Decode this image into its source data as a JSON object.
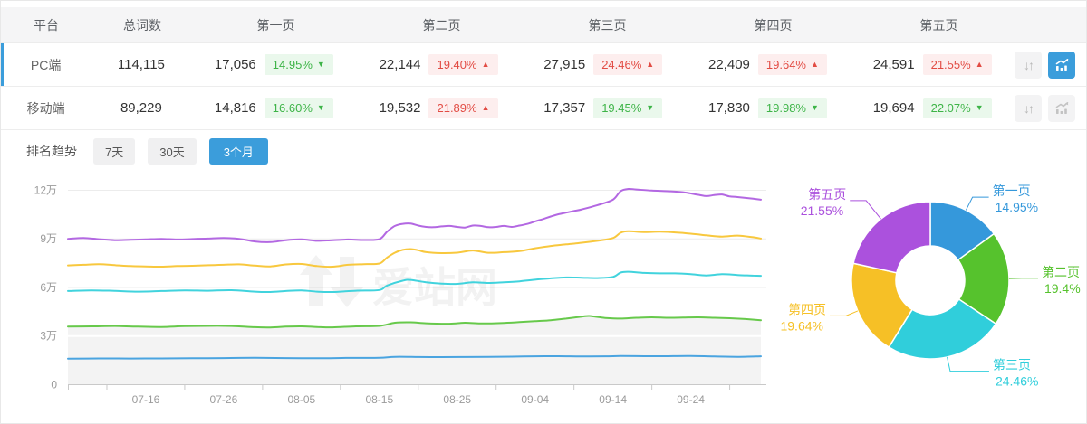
{
  "table": {
    "headers": {
      "platform": "平台",
      "total": "总词数",
      "page1": "第一页",
      "page2": "第二页",
      "page3": "第三页",
      "page4": "第四页",
      "page5": "第五页"
    },
    "icons": {
      "sort_glyph": "↓↑"
    },
    "rows": [
      {
        "platform": "PC端",
        "total": "114,115",
        "selected": true,
        "pages": [
          {
            "count": "17,056",
            "pct": "14.95%",
            "dir": "down",
            "tri": "▼"
          },
          {
            "count": "22,144",
            "pct": "19.40%",
            "dir": "up",
            "tri": "▲"
          },
          {
            "count": "27,915",
            "pct": "24.46%",
            "dir": "up",
            "tri": "▲"
          },
          {
            "count": "22,409",
            "pct": "19.64%",
            "dir": "up",
            "tri": "▲"
          },
          {
            "count": "24,591",
            "pct": "21.55%",
            "dir": "up",
            "tri": "▲"
          }
        ]
      },
      {
        "platform": "移动端",
        "total": "89,229",
        "selected": false,
        "pages": [
          {
            "count": "14,816",
            "pct": "16.60%",
            "dir": "down",
            "tri": "▼"
          },
          {
            "count": "19,532",
            "pct": "21.89%",
            "dir": "up",
            "tri": "▲"
          },
          {
            "count": "17,357",
            "pct": "19.45%",
            "dir": "down",
            "tri": "▼"
          },
          {
            "count": "17,830",
            "pct": "19.98%",
            "dir": "down",
            "tri": "▼"
          },
          {
            "count": "19,694",
            "pct": "22.07%",
            "dir": "down",
            "tri": "▼"
          }
        ]
      }
    ]
  },
  "trend": {
    "label": "排名趋势",
    "tabs": [
      {
        "label": "7天",
        "active": false
      },
      {
        "label": "30天",
        "active": false
      },
      {
        "label": "3个月",
        "active": true
      }
    ]
  },
  "watermark": {
    "text": "爱站网"
  },
  "colors": {
    "accent_blue": "#3b9ddb",
    "badge_green": "#3db447",
    "badge_red": "#e24b43",
    "grid": "#ececec",
    "axis_label": "#9b9b9b"
  },
  "chart_data": [
    {
      "type": "line",
      "note": "stacked cumulative keyword counts over 3 months, unit 万 (10k)",
      "x_ticks": [
        {
          "day": 10,
          "label": "07-16"
        },
        {
          "day": 20,
          "label": "07-26"
        },
        {
          "day": 30,
          "label": "08-05"
        },
        {
          "day": 40,
          "label": "08-15"
        },
        {
          "day": 50,
          "label": "08-25"
        },
        {
          "day": 60,
          "label": "09-04"
        },
        {
          "day": 70,
          "label": "09-14"
        },
        {
          "day": 80,
          "label": "09-24"
        }
      ],
      "x_range_days": [
        0,
        89
      ],
      "y_ticks": [
        {
          "value_wan": 0,
          "label": "0"
        },
        {
          "value_wan": 3,
          "label": "3万"
        },
        {
          "value_wan": 6,
          "label": "6万"
        },
        {
          "value_wan": 9,
          "label": "9万"
        },
        {
          "value_wan": 12,
          "label": "12万"
        }
      ],
      "ylim_wan": [
        0,
        13
      ],
      "series": [
        {
          "name": "第一页",
          "color": "#4aa4e0",
          "points": [
            [
              0,
              1.6
            ],
            [
              4,
              1.62
            ],
            [
              8,
              1.61
            ],
            [
              12,
              1.62
            ],
            [
              16,
              1.63
            ],
            [
              20,
              1.64
            ],
            [
              24,
              1.66
            ],
            [
              28,
              1.64
            ],
            [
              32,
              1.63
            ],
            [
              36,
              1.65
            ],
            [
              40,
              1.66
            ],
            [
              42,
              1.72
            ],
            [
              45,
              1.71
            ],
            [
              48,
              1.7
            ],
            [
              51,
              1.71
            ],
            [
              54,
              1.72
            ],
            [
              57,
              1.73
            ],
            [
              60,
              1.75
            ],
            [
              63,
              1.76
            ],
            [
              66,
              1.74
            ],
            [
              69,
              1.75
            ],
            [
              71,
              1.77
            ],
            [
              74,
              1.76
            ],
            [
              77,
              1.76
            ],
            [
              80,
              1.77
            ],
            [
              83,
              1.74
            ],
            [
              86,
              1.72
            ],
            [
              89,
              1.75
            ]
          ]
        },
        {
          "name": "第二页",
          "color": "#67c94b",
          "area_fill": "#f3f3f3",
          "points": [
            [
              0,
              3.58
            ],
            [
              3,
              3.6
            ],
            [
              6,
              3.62
            ],
            [
              9,
              3.58
            ],
            [
              12,
              3.56
            ],
            [
              15,
              3.61
            ],
            [
              18,
              3.63
            ],
            [
              21,
              3.62
            ],
            [
              24,
              3.55
            ],
            [
              26,
              3.53
            ],
            [
              28,
              3.58
            ],
            [
              30,
              3.6
            ],
            [
              32,
              3.56
            ],
            [
              34,
              3.54
            ],
            [
              37,
              3.6
            ],
            [
              40,
              3.63
            ],
            [
              42,
              3.82
            ],
            [
              44,
              3.85
            ],
            [
              46,
              3.79
            ],
            [
              49,
              3.76
            ],
            [
              51,
              3.82
            ],
            [
              53,
              3.78
            ],
            [
              56,
              3.81
            ],
            [
              58,
              3.86
            ],
            [
              60,
              3.92
            ],
            [
              62,
              3.98
            ],
            [
              64,
              4.08
            ],
            [
              66,
              4.2
            ],
            [
              67,
              4.24
            ],
            [
              69,
              4.12
            ],
            [
              71,
              4.08
            ],
            [
              73,
              4.13
            ],
            [
              75,
              4.16
            ],
            [
              77,
              4.13
            ],
            [
              79,
              4.14
            ],
            [
              81,
              4.16
            ],
            [
              83,
              4.13
            ],
            [
              85,
              4.1
            ],
            [
              87,
              4.05
            ],
            [
              89,
              3.98
            ]
          ]
        },
        {
          "name": "第三页",
          "color": "#41d3dd",
          "points": [
            [
              0,
              5.78
            ],
            [
              3,
              5.82
            ],
            [
              6,
              5.79
            ],
            [
              9,
              5.74
            ],
            [
              12,
              5.78
            ],
            [
              15,
              5.82
            ],
            [
              18,
              5.8
            ],
            [
              21,
              5.83
            ],
            [
              24,
              5.74
            ],
            [
              26,
              5.72
            ],
            [
              28,
              5.78
            ],
            [
              30,
              5.82
            ],
            [
              32,
              5.74
            ],
            [
              34,
              5.72
            ],
            [
              37,
              5.8
            ],
            [
              40,
              5.84
            ],
            [
              41,
              6.12
            ],
            [
              43,
              6.42
            ],
            [
              44,
              6.47
            ],
            [
              46,
              6.32
            ],
            [
              48,
              6.24
            ],
            [
              50,
              6.22
            ],
            [
              52,
              6.32
            ],
            [
              54,
              6.28
            ],
            [
              56,
              6.32
            ],
            [
              58,
              6.38
            ],
            [
              60,
              6.48
            ],
            [
              62,
              6.56
            ],
            [
              64,
              6.62
            ],
            [
              66,
              6.6
            ],
            [
              68,
              6.58
            ],
            [
              70,
              6.65
            ],
            [
              71,
              6.92
            ],
            [
              72,
              6.97
            ],
            [
              74,
              6.9
            ],
            [
              76,
              6.87
            ],
            [
              78,
              6.87
            ],
            [
              80,
              6.82
            ],
            [
              82,
              6.74
            ],
            [
              84,
              6.82
            ],
            [
              86,
              6.77
            ],
            [
              88,
              6.73
            ],
            [
              89,
              6.72
            ]
          ]
        },
        {
          "name": "第四页",
          "color": "#f8c83e",
          "points": [
            [
              0,
              7.36
            ],
            [
              2,
              7.4
            ],
            [
              4,
              7.44
            ],
            [
              6,
              7.38
            ],
            [
              8,
              7.32
            ],
            [
              10,
              7.3
            ],
            [
              12,
              7.28
            ],
            [
              14,
              7.32
            ],
            [
              16,
              7.34
            ],
            [
              18,
              7.37
            ],
            [
              20,
              7.4
            ],
            [
              22,
              7.43
            ],
            [
              24,
              7.35
            ],
            [
              26,
              7.3
            ],
            [
              28,
              7.42
            ],
            [
              30,
              7.45
            ],
            [
              32,
              7.32
            ],
            [
              34,
              7.28
            ],
            [
              36,
              7.4
            ],
            [
              38,
              7.44
            ],
            [
              40,
              7.48
            ],
            [
              41,
              7.85
            ],
            [
              42,
              8.15
            ],
            [
              43,
              8.32
            ],
            [
              44,
              8.37
            ],
            [
              45,
              8.3
            ],
            [
              46,
              8.18
            ],
            [
              48,
              8.12
            ],
            [
              50,
              8.15
            ],
            [
              52,
              8.28
            ],
            [
              54,
              8.14
            ],
            [
              56,
              8.18
            ],
            [
              58,
              8.24
            ],
            [
              60,
              8.42
            ],
            [
              62,
              8.56
            ],
            [
              64,
              8.66
            ],
            [
              66,
              8.76
            ],
            [
              68,
              8.88
            ],
            [
              70,
              9.05
            ],
            [
              71,
              9.38
            ],
            [
              72,
              9.47
            ],
            [
              74,
              9.42
            ],
            [
              76,
              9.44
            ],
            [
              78,
              9.4
            ],
            [
              80,
              9.32
            ],
            [
              82,
              9.22
            ],
            [
              84,
              9.14
            ],
            [
              86,
              9.2
            ],
            [
              88,
              9.1
            ],
            [
              89,
              9.02
            ]
          ]
        },
        {
          "name": "第五页",
          "color": "#b368e2",
          "points": [
            [
              0,
              9.0
            ],
            [
              2,
              9.05
            ],
            [
              4,
              8.98
            ],
            [
              6,
              8.92
            ],
            [
              8,
              8.94
            ],
            [
              10,
              8.97
            ],
            [
              12,
              9.0
            ],
            [
              14,
              8.96
            ],
            [
              16,
              8.99
            ],
            [
              18,
              9.02
            ],
            [
              20,
              9.05
            ],
            [
              22,
              9.0
            ],
            [
              24,
              8.84
            ],
            [
              26,
              8.8
            ],
            [
              28,
              8.92
            ],
            [
              30,
              8.97
            ],
            [
              32,
              8.88
            ],
            [
              34,
              8.92
            ],
            [
              36,
              8.96
            ],
            [
              38,
              8.93
            ],
            [
              40,
              8.98
            ],
            [
              41,
              9.45
            ],
            [
              42,
              9.8
            ],
            [
              43,
              9.93
            ],
            [
              44,
              9.95
            ],
            [
              45,
              9.82
            ],
            [
              46,
              9.74
            ],
            [
              47,
              9.72
            ],
            [
              48,
              9.77
            ],
            [
              49,
              9.8
            ],
            [
              50,
              9.74
            ],
            [
              51,
              9.7
            ],
            [
              52,
              9.82
            ],
            [
              53,
              9.8
            ],
            [
              54,
              9.72
            ],
            [
              55,
              9.74
            ],
            [
              56,
              9.8
            ],
            [
              57,
              9.74
            ],
            [
              58,
              9.82
            ],
            [
              59,
              9.92
            ],
            [
              60,
              10.08
            ],
            [
              61,
              10.22
            ],
            [
              62,
              10.38
            ],
            [
              63,
              10.52
            ],
            [
              64,
              10.62
            ],
            [
              65,
              10.72
            ],
            [
              66,
              10.82
            ],
            [
              68,
              11.08
            ],
            [
              70,
              11.42
            ],
            [
              71,
              11.95
            ],
            [
              72,
              12.08
            ],
            [
              73,
              12.05
            ],
            [
              75,
              11.98
            ],
            [
              77,
              11.94
            ],
            [
              79,
              11.88
            ],
            [
              81,
              11.72
            ],
            [
              82,
              11.64
            ],
            [
              83,
              11.7
            ],
            [
              84,
              11.74
            ],
            [
              85,
              11.62
            ],
            [
              86,
              11.58
            ],
            [
              88,
              11.48
            ],
            [
              89,
              11.42
            ]
          ]
        }
      ]
    },
    {
      "type": "pie",
      "donut": true,
      "slices": [
        {
          "label": "第一页",
          "value": 14.95,
          "display": "14.95%",
          "color": "#3598db"
        },
        {
          "label": "第二页",
          "value": 19.4,
          "display": "19.4%",
          "color": "#56c22d"
        },
        {
          "label": "第三页",
          "value": 24.46,
          "display": "24.46%",
          "color": "#30cedb"
        },
        {
          "label": "第四页",
          "value": 19.64,
          "display": "19.64%",
          "color": "#f6c026"
        },
        {
          "label": "第五页",
          "value": 21.55,
          "display": "21.55%",
          "color": "#ab51dd"
        }
      ]
    }
  ]
}
